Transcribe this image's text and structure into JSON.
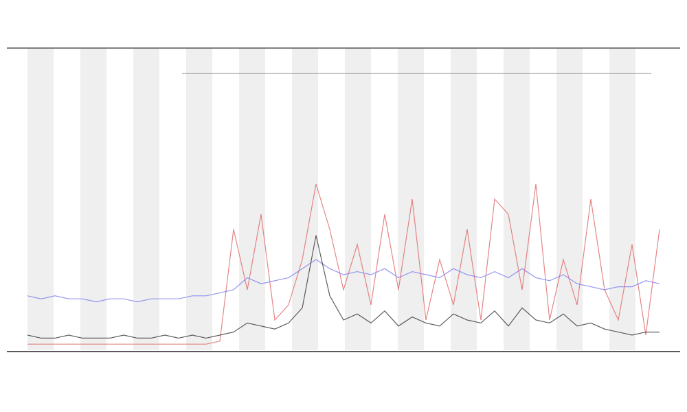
{
  "chart_data": {
    "type": "line",
    "x": [
      0,
      1,
      2,
      3,
      4,
      5,
      6,
      7,
      8,
      9,
      10,
      11,
      12,
      13,
      14,
      15,
      16,
      17,
      18,
      19,
      20,
      21,
      22,
      23,
      24,
      25,
      26,
      27,
      28,
      29,
      30,
      31,
      32,
      33,
      34,
      35,
      36,
      37,
      38,
      39,
      40,
      41,
      42,
      43,
      44,
      45,
      46
    ],
    "xlim": [
      0,
      46
    ],
    "ylim": [
      0,
      100
    ],
    "series": [
      {
        "color": "#e06666",
        "values": [
          2,
          2,
          2,
          2,
          2,
          2,
          2,
          2,
          2,
          2,
          2,
          2,
          2,
          2,
          3,
          40,
          20,
          45,
          10,
          15,
          30,
          55,
          40,
          20,
          35,
          15,
          45,
          20,
          50,
          10,
          30,
          15,
          40,
          10,
          50,
          45,
          20,
          55,
          10,
          30,
          15,
          50,
          20,
          10,
          35,
          5,
          40
        ]
      },
      {
        "color": "#7b7bf0",
        "values": [
          18,
          17,
          18,
          17,
          17,
          16,
          17,
          17,
          16,
          17,
          17,
          17,
          18,
          18,
          19,
          20,
          24,
          22,
          23,
          24,
          27,
          30,
          27,
          25,
          26,
          25,
          27,
          24,
          26,
          25,
          24,
          27,
          25,
          24,
          26,
          24,
          27,
          24,
          23,
          25,
          22,
          21,
          20,
          21,
          21,
          23,
          22
        ]
      },
      {
        "color": "#333333",
        "values": [
          5,
          4,
          4,
          5,
          4,
          4,
          4,
          5,
          4,
          4,
          5,
          4,
          5,
          4,
          5,
          6,
          9,
          8,
          7,
          9,
          14,
          38,
          18,
          10,
          12,
          9,
          13,
          8,
          11,
          9,
          8,
          12,
          10,
          9,
          13,
          8,
          14,
          10,
          9,
          12,
          8,
          9,
          7,
          6,
          5,
          6,
          6
        ]
      }
    ]
  }
}
